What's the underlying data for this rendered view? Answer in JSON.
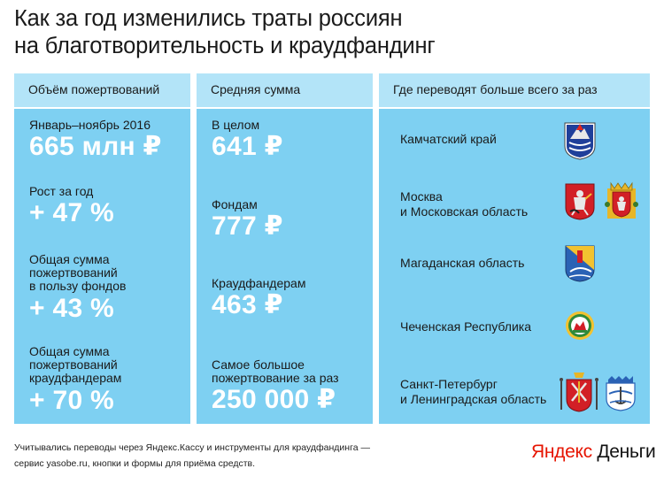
{
  "title_line1": "Как за год изменились траты россиян",
  "title_line2": "на благотворительность и краудфандинг",
  "volume": {
    "header": "Объём пожертвований",
    "period_label": "Январь–ноябрь 2016",
    "period_value": "665 млн ₽",
    "growth_label": "Рост за год",
    "growth_value": "+ 47 %",
    "funds_label": [
      "Общая сумма",
      "пожертвований",
      "в пользу фондов"
    ],
    "funds_value": "+ 43 %",
    "crowd_label": [
      "Общая сумма",
      "пожертвований",
      "краудфандерам"
    ],
    "crowd_value": "+ 70 %"
  },
  "average": {
    "header": "Средняя сумма",
    "total_label": "В целом",
    "total_value": "641 ₽",
    "funds_label": "Фондам",
    "funds_value": "777 ₽",
    "crowd_label": "Краудфандерам",
    "crowd_value": "463 ₽",
    "max_label": [
      "Самое большое",
      "пожертвование за раз"
    ],
    "max_value": "250 000 ₽"
  },
  "regions": {
    "header": "Где переводят больше всего за раз",
    "items": [
      {
        "name": [
          "Камчатский край"
        ],
        "coats": [
          "kamchatka-coat-of-arms-icon"
        ]
      },
      {
        "name": [
          "Москва",
          "и Московская область"
        ],
        "coats": [
          "moscow-coat-of-arms-icon",
          "moscow-oblast-coat-of-arms-icon"
        ]
      },
      {
        "name": [
          "Магаданская область"
        ],
        "coats": [
          "magadan-coat-of-arms-icon"
        ]
      },
      {
        "name": [
          "Чеченская Республика"
        ],
        "coats": [
          "chechnya-emblem-icon"
        ]
      },
      {
        "name": [
          "Санкт-Петербург",
          "и Ленинградская область"
        ],
        "coats": [
          "saint-petersburg-coat-of-arms-icon",
          "leningrad-oblast-coat-of-arms-icon"
        ]
      }
    ]
  },
  "footnote_line1": "Учитывались переводы через Яндекс.Кассу и инструменты для краудфандинга —",
  "footnote_line2": "сервис yasobe.ru, кнопки и формы для приёма средств.",
  "logo": {
    "ya": "Яндекс",
    "rest": " Деньги"
  },
  "colors": {
    "panel": "#7ed0f2",
    "panel_header": "#b3e4f8",
    "value_text": "#ffffff",
    "logo_accent": "#e61400"
  }
}
